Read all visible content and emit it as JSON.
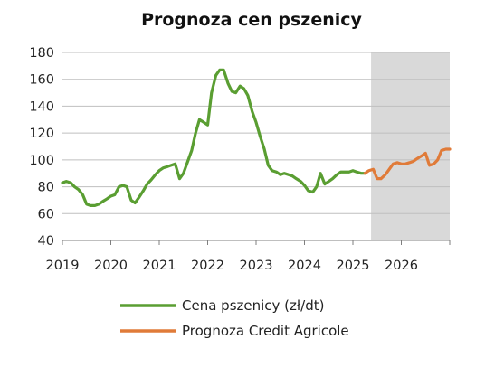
{
  "chart_data": {
    "type": "line",
    "title": "Prognoza cen pszenicy",
    "xlabel": "",
    "ylabel": "",
    "ylim": [
      40,
      180
    ],
    "yticks": [
      40,
      60,
      80,
      100,
      120,
      140,
      160,
      180
    ],
    "xlim": [
      2019,
      2027
    ],
    "xticks": [
      "2019",
      "2020",
      "2021",
      "2022",
      "2023",
      "2024",
      "2025",
      "2026"
    ],
    "grid": true,
    "shaded_region": [
      2025.375,
      2027
    ],
    "legend_position": "bottom",
    "series": [
      {
        "name": "Cena pszenicy (zł/dt)",
        "color": "#5a9e32",
        "x": [
          2019.0,
          2019.08,
          2019.17,
          2019.25,
          2019.33,
          2019.42,
          2019.5,
          2019.58,
          2019.67,
          2019.75,
          2019.83,
          2019.92,
          2020.0,
          2020.08,
          2020.17,
          2020.25,
          2020.33,
          2020.42,
          2020.5,
          2020.58,
          2020.67,
          2020.75,
          2020.83,
          2020.92,
          2021.0,
          2021.08,
          2021.17,
          2021.25,
          2021.33,
          2021.42,
          2021.5,
          2021.58,
          2021.67,
          2021.75,
          2021.83,
          2021.92,
          2022.0,
          2022.08,
          2022.17,
          2022.25,
          2022.33,
          2022.42,
          2022.5,
          2022.58,
          2022.67,
          2022.75,
          2022.83,
          2022.92,
          2023.0,
          2023.08,
          2023.17,
          2023.25,
          2023.33,
          2023.42,
          2023.5,
          2023.58,
          2023.67,
          2023.75,
          2023.83,
          2023.92,
          2024.0,
          2024.08,
          2024.17,
          2024.25,
          2024.33,
          2024.42,
          2024.5,
          2024.58,
          2024.67,
          2024.75,
          2024.83,
          2024.92,
          2025.0,
          2025.08,
          2025.17,
          2025.25
        ],
        "values": [
          83,
          84,
          83,
          80,
          78,
          74,
          67,
          66,
          66,
          67,
          69,
          71,
          73,
          74,
          80,
          81,
          80,
          70,
          68,
          72,
          77,
          82,
          85,
          89,
          92,
          94,
          95,
          96,
          97,
          86,
          90,
          98,
          107,
          120,
          130,
          128,
          126,
          150,
          163,
          167,
          167,
          157,
          151,
          150,
          155,
          153,
          148,
          136,
          128,
          118,
          108,
          96,
          92,
          91,
          89,
          90,
          89,
          88,
          86,
          84,
          81,
          77,
          76,
          80,
          90,
          82,
          84,
          86,
          89,
          91,
          91,
          91,
          92,
          91,
          90,
          90
        ]
      },
      {
        "name": "Prognoza Credit Agricole",
        "color": "#e07b39",
        "x": [
          2025.25,
          2025.33,
          2025.42,
          2025.5,
          2025.58,
          2025.67,
          2025.75,
          2025.83,
          2025.92,
          2026.0,
          2026.08,
          2026.17,
          2026.25,
          2026.33,
          2026.42,
          2026.5,
          2026.58,
          2026.67,
          2026.75,
          2026.83,
          2026.92,
          2027.0
        ],
        "values": [
          90,
          92,
          93,
          86,
          86,
          89,
          93,
          97,
          98,
          97,
          97,
          98,
          99,
          101,
          103,
          105,
          96,
          97,
          100,
          107,
          108,
          108
        ]
      }
    ]
  }
}
